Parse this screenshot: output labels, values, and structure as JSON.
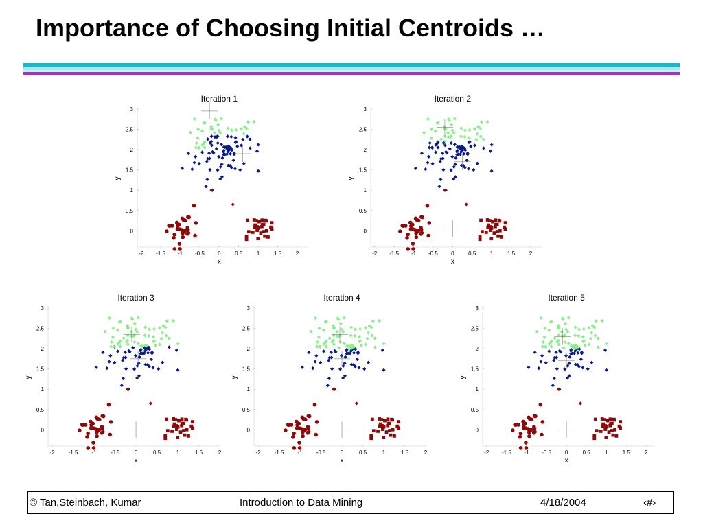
{
  "slide": {
    "title": "Importance of Choosing Initial Centroids …",
    "stripe_colors": [
      "#1ab8c6",
      "#a8e8f0",
      "#c8f0f6",
      "#c020c0"
    ]
  },
  "footer": {
    "left": "© Tan,Steinbach, Kumar",
    "center": "Introduction to Data Mining",
    "date": "4/18/2004",
    "page": "‹#›"
  },
  "cluster_colors": {
    "green": "#88f088",
    "blue": "#0a1a8c",
    "red": "#8c0a0a"
  },
  "chart_data": [
    {
      "type": "scatter",
      "title": "Iteration 1",
      "xlabel": "x",
      "ylabel": "y",
      "xlim": [
        -2.1,
        2.3
      ],
      "ylim": [
        -0.4,
        3.05
      ],
      "xticks": [
        "-2",
        "-1.5",
        "-1",
        "-0.5",
        "0",
        "0.5",
        "1",
        "1.5",
        "2"
      ],
      "yticks": [
        "0",
        "0.5",
        "1",
        "1.5",
        "2",
        "2.5",
        "3"
      ],
      "centroids": [
        {
          "x": -0.25,
          "y": 2.95
        },
        {
          "x": 0.6,
          "y": 1.9
        },
        {
          "x": -0.6,
          "y": 0.05
        }
      ]
    },
    {
      "type": "scatter",
      "title": "Iteration 2",
      "xlabel": "x",
      "ylabel": "y",
      "xlim": [
        -2.1,
        2.3
      ],
      "ylim": [
        -0.4,
        3.05
      ],
      "xticks": [
        "-2",
        "-1.5",
        "-1",
        "-0.5",
        "0",
        "0.5",
        "1",
        "1.5",
        "2"
      ],
      "yticks": [
        "0",
        "0.5",
        "1",
        "1.5",
        "2",
        "2.5",
        "3"
      ],
      "centroids": [
        {
          "x": -0.2,
          "y": 2.55
        },
        {
          "x": 0.25,
          "y": 1.7
        },
        {
          "x": 0.0,
          "y": 0.05
        }
      ]
    },
    {
      "type": "scatter",
      "title": "Iteration 3",
      "xlabel": "x",
      "ylabel": "y",
      "xlim": [
        -2.1,
        2.0
      ],
      "ylim": [
        -0.4,
        3.05
      ],
      "xticks": [
        "-2",
        "-1.5",
        "-1",
        "-0.5",
        "0",
        "0.5",
        "1",
        "1.5",
        "2"
      ],
      "yticks": [
        "0",
        "0.5",
        "1",
        "1.5",
        "2",
        "2.5",
        "3"
      ],
      "centroids": [
        {
          "x": -0.1,
          "y": 2.35
        },
        {
          "x": 0.05,
          "y": 1.75
        },
        {
          "x": 0.0,
          "y": 0.0
        }
      ]
    },
    {
      "type": "scatter",
      "title": "Iteration 4",
      "xlabel": "x",
      "ylabel": "y",
      "xlim": [
        -2.1,
        2.0
      ],
      "ylim": [
        -0.4,
        3.05
      ],
      "xticks": [
        "-2",
        "-1.5",
        "-1",
        "-0.5",
        "0",
        "0.5",
        "1",
        "1.5",
        "2"
      ],
      "yticks": [
        "0",
        "0.5",
        "1",
        "1.5",
        "2",
        "2.5",
        "3"
      ],
      "centroids": [
        {
          "x": -0.05,
          "y": 2.35
        },
        {
          "x": 0.0,
          "y": 1.75
        },
        {
          "x": 0.0,
          "y": 0.0
        }
      ]
    },
    {
      "type": "scatter",
      "title": "Iteration 5",
      "xlabel": "x",
      "ylabel": "y",
      "xlim": [
        -2.1,
        2.2
      ],
      "ylim": [
        -0.4,
        3.05
      ],
      "xticks": [
        "-2",
        "-1.5",
        "-1",
        "-0.5",
        "0",
        "0.5",
        "1",
        "1.5",
        "2"
      ],
      "yticks": [
        "0",
        "0.5",
        "1",
        "1.5",
        "2",
        "2.5",
        "3"
      ],
      "centroids": [
        {
          "x": -0.1,
          "y": 2.3
        },
        {
          "x": 0.0,
          "y": 1.7
        },
        {
          "x": 0.0,
          "y": 0.0
        }
      ]
    }
  ]
}
